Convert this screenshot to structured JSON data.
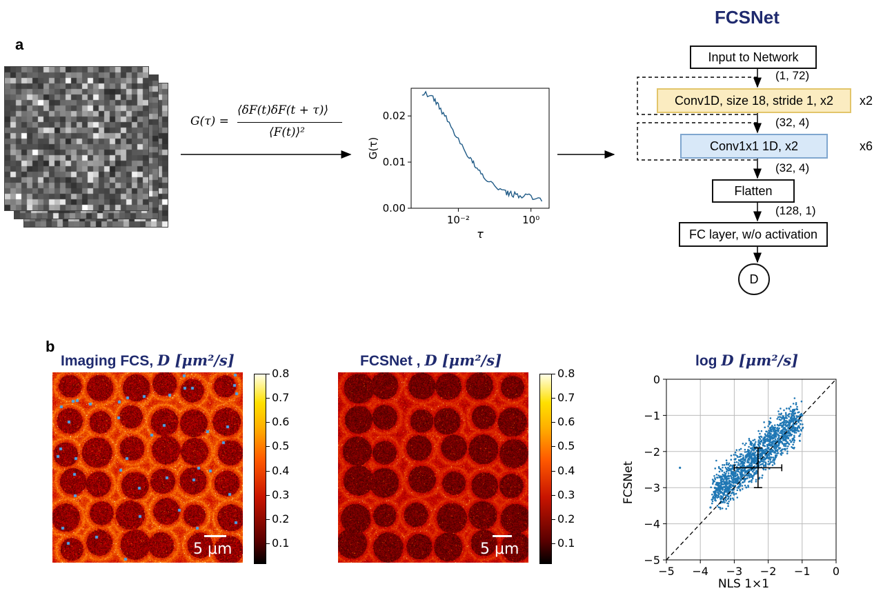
{
  "panel_a": {
    "label": "a",
    "formula_lhs": "G(τ) =",
    "formula_num": "⟨δF(t)δF(t + τ)⟩",
    "formula_den": "⟨F(t)⟩²",
    "plot": {
      "ylabel": "G(τ)",
      "xlabel": "τ",
      "yticks": [
        "0.00",
        "0.01",
        "0.02"
      ],
      "xticks": [
        "10⁻²",
        "10⁰"
      ]
    }
  },
  "network": {
    "title": "FCSNet",
    "input": "Input to Network",
    "dim1": "(1, 72)",
    "conv1": "Conv1D, size 18, stride 1, x2",
    "conv1_mult": "x2",
    "dim2": "(32, 4)",
    "conv2": "Conv1x1 1D, x2",
    "conv2_mult": "x6",
    "dim3": "(32, 4)",
    "flatten": "Flatten",
    "dim4": "(128, 1)",
    "fc": "FC layer, w/o activation",
    "output": "D"
  },
  "panel_b": {
    "label": "b",
    "map1_title": "Imaging FCS, ",
    "map1_sym": "D [μm²/s]",
    "map2_title": "FCSNet , ",
    "map2_sym": "D [μm²/s]",
    "scatter_title": "log ",
    "scatter_sym": "D [μm²/s]",
    "colorbar_ticks": [
      "0.8",
      "0.7",
      "0.6",
      "0.5",
      "0.4",
      "0.3",
      "0.2",
      "0.1"
    ],
    "scalebar": "5 μm",
    "colors": {
      "heat_dark": "#1a0000",
      "heat_red": "#c81400",
      "heat_yellow": "#ffe000",
      "scatter": "#1f77b4",
      "title": "#1f2a6e"
    }
  },
  "chart_data": [
    {
      "type": "line",
      "xscale": "log",
      "x": [
        0.001,
        0.002,
        0.003,
        0.005,
        0.01,
        0.02,
        0.03,
        0.05,
        0.1,
        0.2,
        0.3,
        0.5,
        1,
        2
      ],
      "y": [
        0.025,
        0.024,
        0.022,
        0.019,
        0.015,
        0.011,
        0.009,
        0.0065,
        0.005,
        0.0035,
        0.003,
        0.0028,
        0.0025,
        0.0015
      ],
      "xlabel": "τ",
      "ylabel": "G(τ)",
      "ylim": [
        0,
        0.026
      ]
    },
    {
      "type": "scatter",
      "xlabel": "NLS 1×1",
      "ylabel": "FCSNet",
      "title": "log D [μm²/s]",
      "xlim": [
        -5,
        0
      ],
      "ylim": [
        -5,
        0
      ],
      "xticks": [
        -5,
        -4,
        -3,
        -2,
        -1,
        0
      ],
      "yticks": [
        0,
        -1,
        -2,
        -3,
        -4,
        -5
      ],
      "grid": true,
      "identity_line": true,
      "x": [
        -4.6,
        -3.7,
        -3.4,
        -3.2,
        -3.0,
        -2.8,
        -2.6,
        -2.5,
        -2.4,
        -2.3,
        -2.2,
        -2.1,
        -2.0,
        -1.9,
        -1.8,
        -1.7,
        -1.5,
        -1.3,
        -1.1,
        -1.0
      ],
      "y": [
        -2.45,
        -3.55,
        -3.3,
        -3.0,
        -2.85,
        -2.7,
        -2.6,
        -2.4,
        -2.3,
        -2.35,
        -2.2,
        -2.05,
        -2.0,
        -1.95,
        -1.85,
        -1.75,
        -1.6,
        -1.4,
        -1.3,
        -1.0
      ],
      "errorbar": {
        "x": -2.3,
        "y": -2.45,
        "xerr": 0.7,
        "yerr": 0.55
      }
    }
  ]
}
